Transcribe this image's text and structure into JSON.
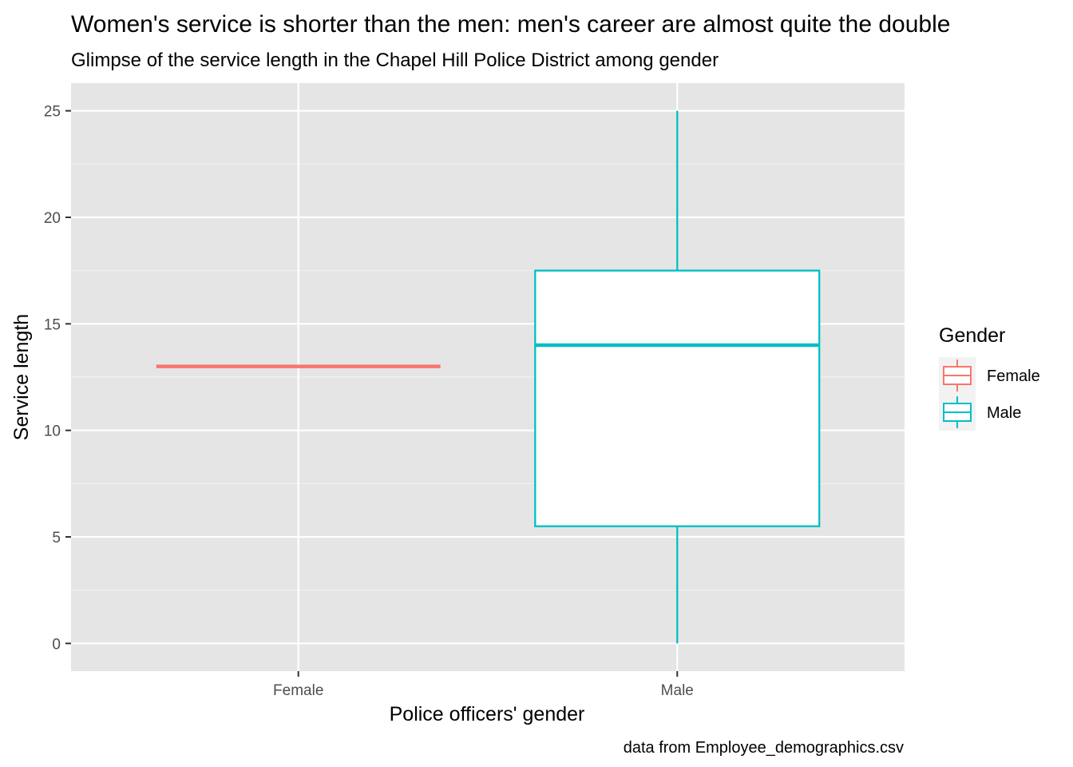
{
  "chart_data": {
    "type": "boxplot",
    "title": "Women's service is shorter than the men: men's career are almost quite the double",
    "subtitle": "Glimpse of the service length in the Chapel Hill Police District among gender",
    "caption": "data from Employee_demographics.csv",
    "xlabel": "Police officers' gender",
    "ylabel": "Service length",
    "categories": [
      "Female",
      "Male"
    ],
    "ylim": [
      -1.3,
      26.3
    ],
    "yticks": [
      0,
      5,
      10,
      15,
      20,
      25
    ],
    "ytick_labels": [
      "0",
      "5",
      "10",
      "15",
      "20",
      "25"
    ],
    "grid": true,
    "legend": {
      "title": "Gender",
      "position": "right",
      "entries": [
        "Female",
        "Male"
      ]
    },
    "series": [
      {
        "name": "Female",
        "color": "#F8766D",
        "min": 13,
        "q1": 13,
        "median": 13,
        "q3": 13,
        "max": 13
      },
      {
        "name": "Male",
        "color": "#00BFC4",
        "min": 0,
        "q1": 5.5,
        "median": 14,
        "q3": 17.5,
        "max": 25
      }
    ]
  }
}
